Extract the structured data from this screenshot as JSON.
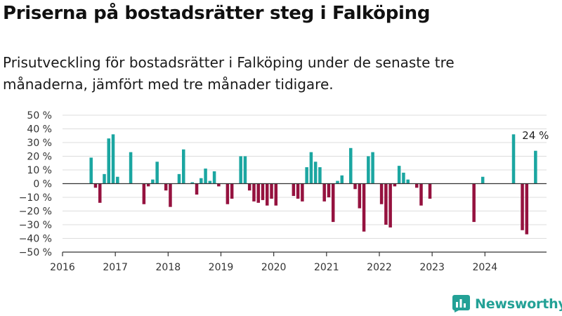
{
  "title": "Priserna på bostadsrätter steg i Falköping",
  "subtitle": "Prisutveckling för bostadsrätter i Falköping under de senaste tre månaderna, jämfört med tre månader tidigare.",
  "brand": "Newsworthy",
  "colors": {
    "positive": "#1ba6a1",
    "negative": "#95123f",
    "brand": "#23a196",
    "grid": "#dddddd",
    "axis": "#333333"
  },
  "chart_data": {
    "type": "bar",
    "ylim": [
      -50,
      50
    ],
    "yticks": [
      {
        "value": 50,
        "label": "50 %"
      },
      {
        "value": 40,
        "label": "40 %"
      },
      {
        "value": 30,
        "label": "30 %"
      },
      {
        "value": 20,
        "label": "20 %"
      },
      {
        "value": 10,
        "label": "10 %"
      },
      {
        "value": 0,
        "label": "0 %"
      },
      {
        "value": -10,
        "label": "−10 %"
      },
      {
        "value": -20,
        "label": "−20 %"
      },
      {
        "value": -30,
        "label": "−30 %"
      },
      {
        "value": -40,
        "label": "−40 %"
      },
      {
        "value": -50,
        "label": "−50 %"
      }
    ],
    "xticks": [
      {
        "date": "2016-01",
        "label": "2016"
      },
      {
        "date": "2017-01",
        "label": "2017"
      },
      {
        "date": "2018-01",
        "label": "2018"
      },
      {
        "date": "2019-01",
        "label": "2019"
      },
      {
        "date": "2020-01",
        "label": "2020"
      },
      {
        "date": "2021-01",
        "label": "2021"
      },
      {
        "date": "2022-01",
        "label": "2022"
      },
      {
        "date": "2023-01",
        "label": "2023"
      },
      {
        "date": "2024-01",
        "label": "2024"
      }
    ],
    "xrange": [
      "2016-01",
      "2025-03"
    ],
    "grid": true,
    "annotation": {
      "date": "2024-12",
      "label": "24 %"
    },
    "bars": [
      {
        "date": "2016-07",
        "value": 19
      },
      {
        "date": "2016-08",
        "value": -3
      },
      {
        "date": "2016-09",
        "value": -14
      },
      {
        "date": "2016-10",
        "value": 7
      },
      {
        "date": "2016-11",
        "value": 33
      },
      {
        "date": "2016-12",
        "value": 36
      },
      {
        "date": "2017-01",
        "value": 5
      },
      {
        "date": "2017-04",
        "value": 23
      },
      {
        "date": "2017-07",
        "value": -15
      },
      {
        "date": "2017-08",
        "value": -2
      },
      {
        "date": "2017-09",
        "value": 3
      },
      {
        "date": "2017-10",
        "value": 16
      },
      {
        "date": "2017-12",
        "value": -5
      },
      {
        "date": "2018-01",
        "value": -17
      },
      {
        "date": "2018-03",
        "value": 7
      },
      {
        "date": "2018-04",
        "value": 25
      },
      {
        "date": "2018-06",
        "value": 1
      },
      {
        "date": "2018-07",
        "value": -8
      },
      {
        "date": "2018-08",
        "value": 4
      },
      {
        "date": "2018-09",
        "value": 11
      },
      {
        "date": "2018-10",
        "value": 2
      },
      {
        "date": "2018-11",
        "value": 9
      },
      {
        "date": "2018-12",
        "value": -2
      },
      {
        "date": "2019-02",
        "value": -15
      },
      {
        "date": "2019-03",
        "value": -11
      },
      {
        "date": "2019-05",
        "value": 20
      },
      {
        "date": "2019-06",
        "value": 20
      },
      {
        "date": "2019-07",
        "value": -5
      },
      {
        "date": "2019-08",
        "value": -13
      },
      {
        "date": "2019-09",
        "value": -14
      },
      {
        "date": "2019-10",
        "value": -12
      },
      {
        "date": "2019-11",
        "value": -16
      },
      {
        "date": "2019-12",
        "value": -11
      },
      {
        "date": "2020-01",
        "value": -16
      },
      {
        "date": "2020-05",
        "value": -9
      },
      {
        "date": "2020-06",
        "value": -11
      },
      {
        "date": "2020-07",
        "value": -13
      },
      {
        "date": "2020-08",
        "value": 12
      },
      {
        "date": "2020-09",
        "value": 23
      },
      {
        "date": "2020-10",
        "value": 16
      },
      {
        "date": "2020-11",
        "value": 12
      },
      {
        "date": "2020-12",
        "value": -13
      },
      {
        "date": "2021-01",
        "value": -10
      },
      {
        "date": "2021-02",
        "value": -28
      },
      {
        "date": "2021-03",
        "value": 2
      },
      {
        "date": "2021-04",
        "value": 6
      },
      {
        "date": "2021-06",
        "value": 26
      },
      {
        "date": "2021-07",
        "value": -4
      },
      {
        "date": "2021-08",
        "value": -18
      },
      {
        "date": "2021-09",
        "value": -35
      },
      {
        "date": "2021-10",
        "value": 20
      },
      {
        "date": "2021-11",
        "value": 23
      },
      {
        "date": "2022-01",
        "value": -15
      },
      {
        "date": "2022-02",
        "value": -30
      },
      {
        "date": "2022-03",
        "value": -32
      },
      {
        "date": "2022-04",
        "value": -2
      },
      {
        "date": "2022-05",
        "value": 13
      },
      {
        "date": "2022-06",
        "value": 8
      },
      {
        "date": "2022-07",
        "value": 3
      },
      {
        "date": "2022-09",
        "value": -3
      },
      {
        "date": "2022-10",
        "value": -16
      },
      {
        "date": "2022-12",
        "value": -11
      },
      {
        "date": "2023-10",
        "value": -28
      },
      {
        "date": "2023-12",
        "value": 5
      },
      {
        "date": "2024-07",
        "value": 36
      },
      {
        "date": "2024-09",
        "value": -34
      },
      {
        "date": "2024-10",
        "value": -37
      },
      {
        "date": "2024-12",
        "value": 24
      }
    ]
  }
}
